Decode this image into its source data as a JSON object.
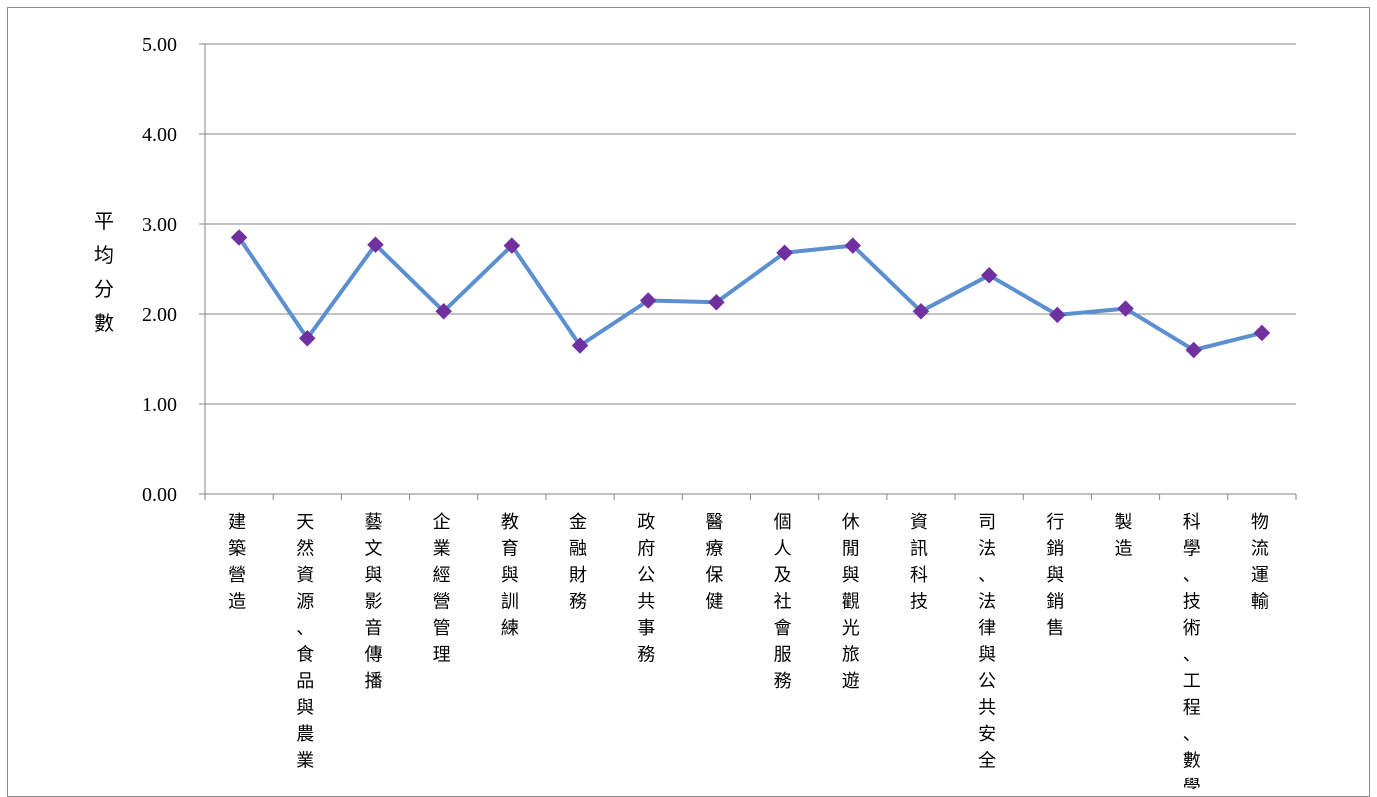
{
  "chart_data": {
    "type": "line",
    "title": "",
    "xlabel": "",
    "ylabel": "平均分數",
    "ylim": [
      0,
      5
    ],
    "yticks": [
      "0.00",
      "1.00",
      "2.00",
      "3.00",
      "4.00",
      "5.00"
    ],
    "grid": true,
    "categories": [
      "建築營造",
      "天然資源、食品與農業",
      "藝文與影音傳播",
      "企業經營管理",
      "教育與訓練",
      "金融財務",
      "政府公共事務",
      "醫療保健",
      "個人及社會服務",
      "休閒與觀光旅遊",
      "資訊科技",
      "司法、法律與公共安全",
      "行銷與銷售",
      "製造",
      "科學、技術、工程、數學",
      "物流運輸"
    ],
    "series": [
      {
        "values": [
          2.85,
          1.73,
          2.77,
          2.03,
          2.76,
          1.65,
          2.15,
          2.13,
          2.68,
          2.76,
          2.03,
          2.43,
          1.99,
          2.06,
          1.6,
          1.79
        ],
        "line_color": "#5B8FD0",
        "marker_color": "#7030A0",
        "marker": "diamond"
      }
    ]
  }
}
